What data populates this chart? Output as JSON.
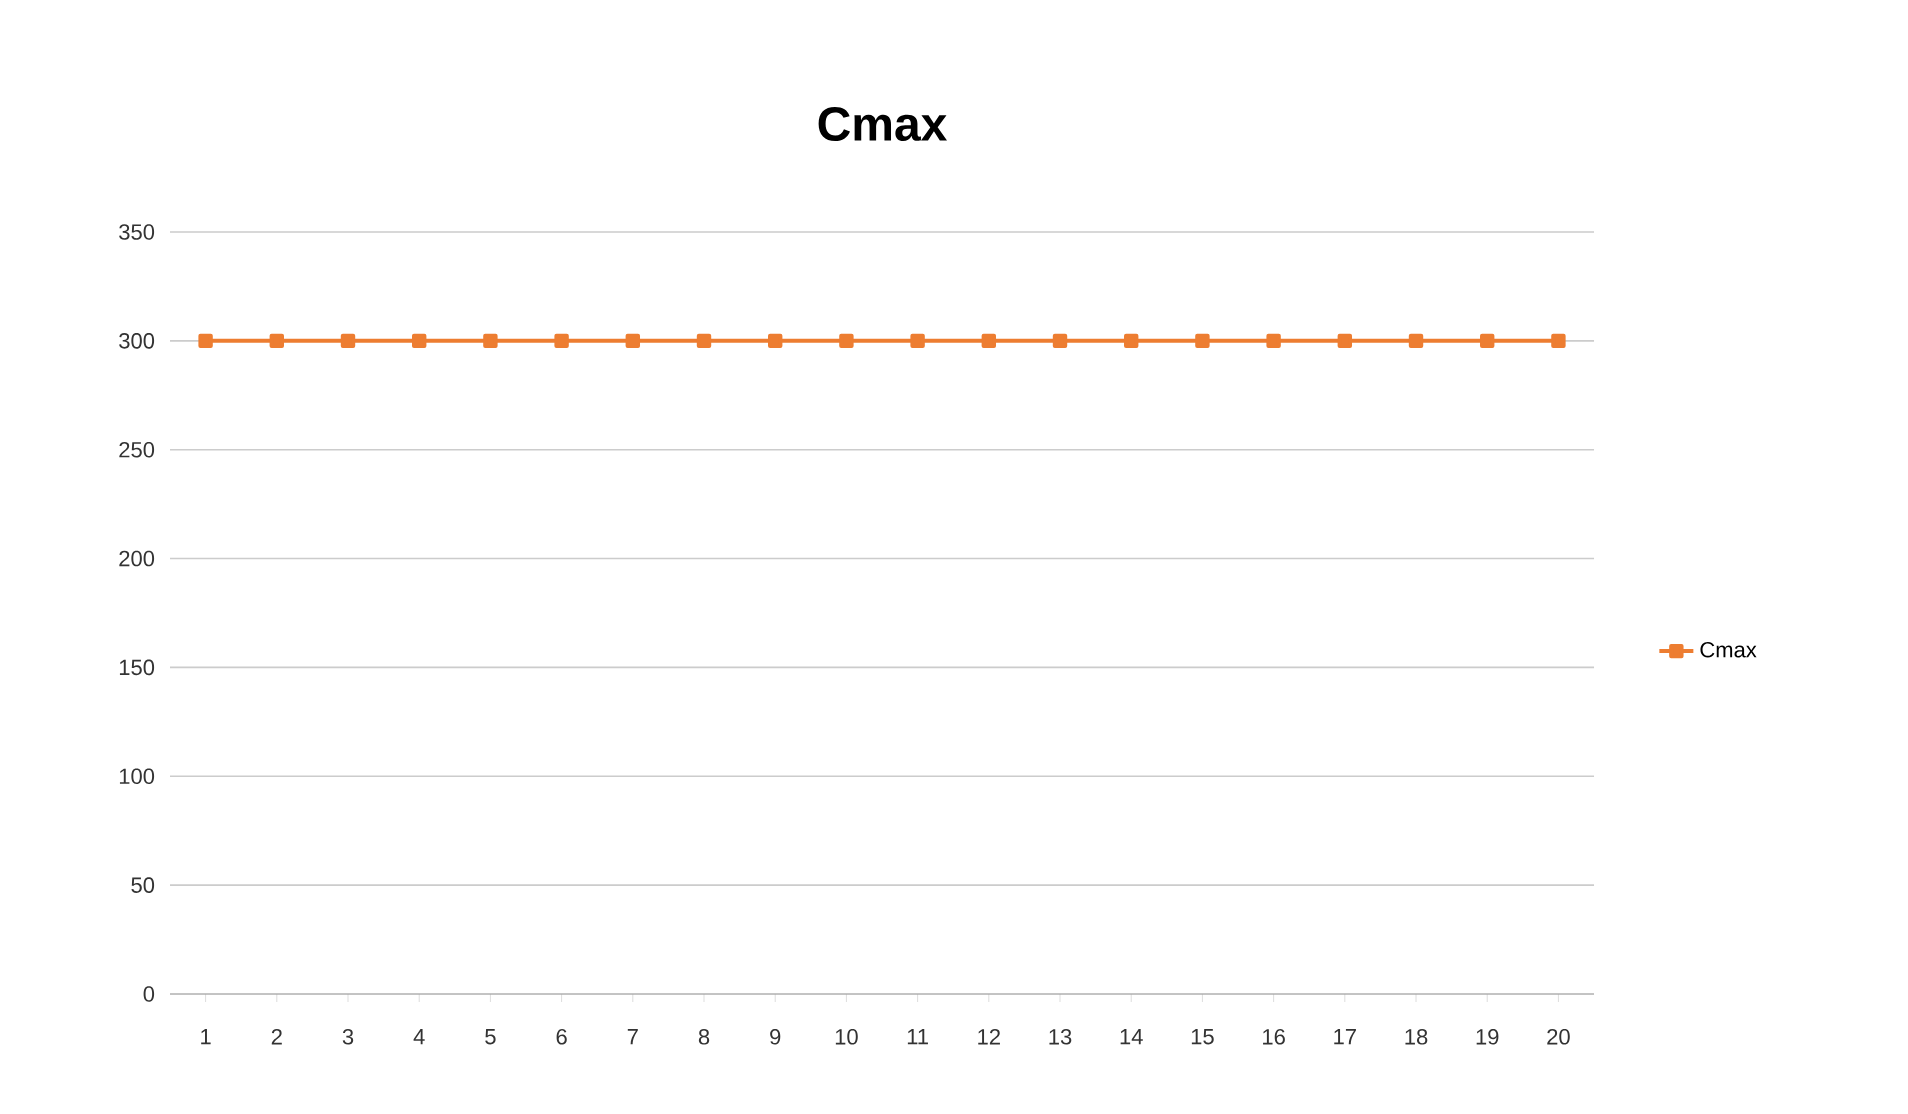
{
  "chart_data": {
    "type": "line",
    "title": "Cmax",
    "categories": [
      "1",
      "2",
      "3",
      "4",
      "5",
      "6",
      "7",
      "8",
      "9",
      "10",
      "11",
      "12",
      "13",
      "14",
      "15",
      "16",
      "17",
      "18",
      "19",
      "20"
    ],
    "series": [
      {
        "name": "Cmax",
        "color": "#ed7d31",
        "values": [
          300,
          300,
          300,
          300,
          300,
          300,
          300,
          300,
          300,
          300,
          300,
          300,
          300,
          300,
          300,
          300,
          300,
          300,
          300,
          300
        ]
      }
    ],
    "ylim": [
      0,
      350
    ],
    "yticks": [
      0,
      50,
      100,
      150,
      200,
      250,
      300,
      350
    ],
    "grid": "y",
    "legend": "right",
    "marker": "square",
    "line_style": "solid"
  }
}
